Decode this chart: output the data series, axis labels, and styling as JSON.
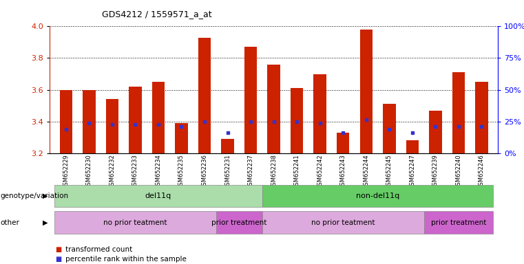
{
  "title": "GDS4212 / 1559571_a_at",
  "samples": [
    "GSM652229",
    "GSM652230",
    "GSM652232",
    "GSM652233",
    "GSM652234",
    "GSM652235",
    "GSM652236",
    "GSM652231",
    "GSM652237",
    "GSM652238",
    "GSM652241",
    "GSM652242",
    "GSM652243",
    "GSM652244",
    "GSM652245",
    "GSM652247",
    "GSM652239",
    "GSM652240",
    "GSM652246"
  ],
  "bar_heights": [
    3.6,
    3.6,
    3.54,
    3.62,
    3.65,
    3.39,
    3.93,
    3.29,
    3.87,
    3.76,
    3.61,
    3.7,
    3.33,
    3.98,
    3.51,
    3.28,
    3.47,
    3.71,
    3.65
  ],
  "blue_values": [
    3.35,
    3.39,
    3.38,
    3.38,
    3.38,
    3.37,
    3.4,
    3.33,
    3.4,
    3.4,
    3.4,
    3.39,
    3.33,
    3.41,
    3.35,
    3.33,
    3.37,
    3.37,
    3.37
  ],
  "ymin": 3.2,
  "ymax": 4.0,
  "bar_color": "#cc2200",
  "blue_color": "#3333cc",
  "genotype_groups": [
    {
      "label": "del11q",
      "start": 0,
      "end": 9,
      "color": "#aaddaa"
    },
    {
      "label": "non-del11q",
      "start": 9,
      "end": 19,
      "color": "#66cc66"
    }
  ],
  "treatment_groups": [
    {
      "label": "no prior teatment",
      "start": 0,
      "end": 7,
      "color": "#ddaadd"
    },
    {
      "label": "prior treatment",
      "start": 7,
      "end": 9,
      "color": "#cc66cc"
    },
    {
      "label": "no prior teatment",
      "start": 9,
      "end": 16,
      "color": "#ddaadd"
    },
    {
      "label": "prior treatment",
      "start": 16,
      "end": 19,
      "color": "#cc66cc"
    }
  ],
  "genotype_label": "genotype/variation",
  "other_label": "other",
  "legend_items": [
    {
      "label": "transformed count",
      "color": "#cc2200"
    },
    {
      "label": "percentile rank within the sample",
      "color": "#3333cc"
    }
  ],
  "right_yticks": [
    0,
    25,
    50,
    75,
    100
  ],
  "right_yticklabels": [
    "0%",
    "25%",
    "50%",
    "75%",
    "100%"
  ]
}
